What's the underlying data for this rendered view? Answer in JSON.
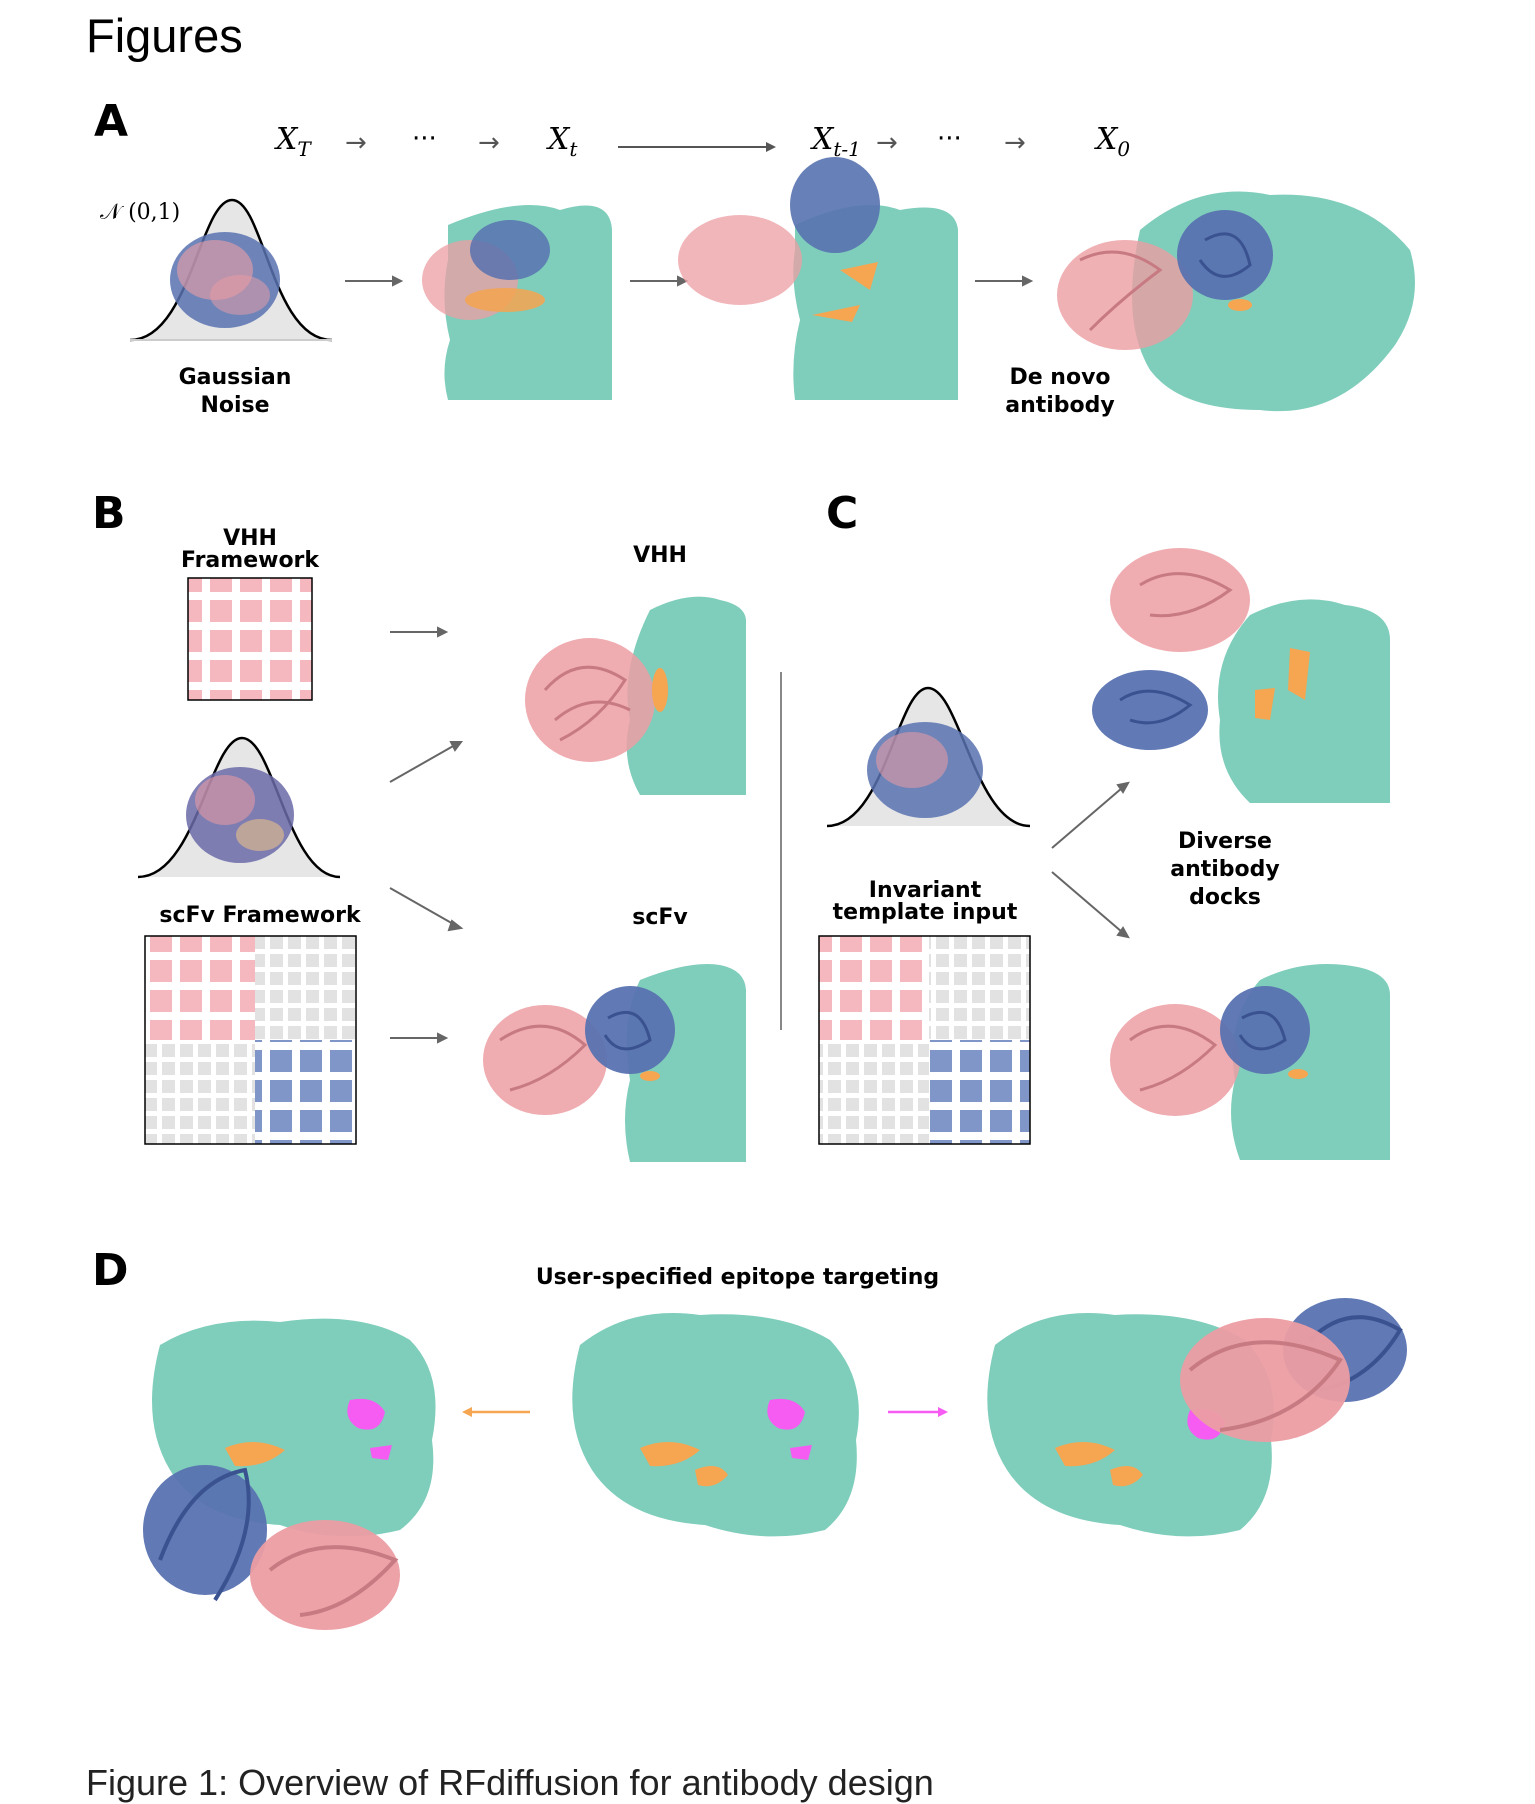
{
  "heading": "Figures",
  "panel_a": {
    "letter": "A",
    "sequence": [
      "X_T",
      "→",
      "···",
      "→",
      "X_t",
      "X_t-1",
      "→",
      "···",
      "→",
      "X_0"
    ],
    "x_T": {
      "base": "X",
      "sub": "T"
    },
    "x_t": {
      "base": "X",
      "sub": "t"
    },
    "x_t1": {
      "base": "X",
      "sub": "t-1"
    },
    "x_0": {
      "base": "X",
      "sub": "0"
    },
    "dots": "···",
    "normal_label": "𝒩 (0,1)",
    "gaussian_label_line1": "Gaussian",
    "gaussian_label_line2": "Noise",
    "denovo_label_line1": "De novo",
    "denovo_label_line2": "antibody"
  },
  "panel_b": {
    "letter": "B",
    "vhh_framework_line1": "VHH",
    "vhh_framework_line2": "Framework",
    "vhh_output": "VHH",
    "scfv_framework": "scFv Framework",
    "scfv_output": "scFv"
  },
  "panel_c": {
    "letter": "C",
    "invariant_line1": "Invariant",
    "invariant_line2": "template input",
    "diverse_line1": "Diverse",
    "diverse_line2": "antibody",
    "diverse_line3": "docks"
  },
  "panel_d": {
    "letter": "D",
    "title": "User-specified epitope targeting"
  },
  "caption": "Figure 1: Overview of RFdiffusion for antibody design",
  "colors": {
    "target": "#7fcdbb",
    "heavy": "#5872b0",
    "light": "#ec9da3",
    "hotspot": "#f6a550",
    "epitope_alt": "#f65cf1",
    "arrow": "#666666"
  }
}
